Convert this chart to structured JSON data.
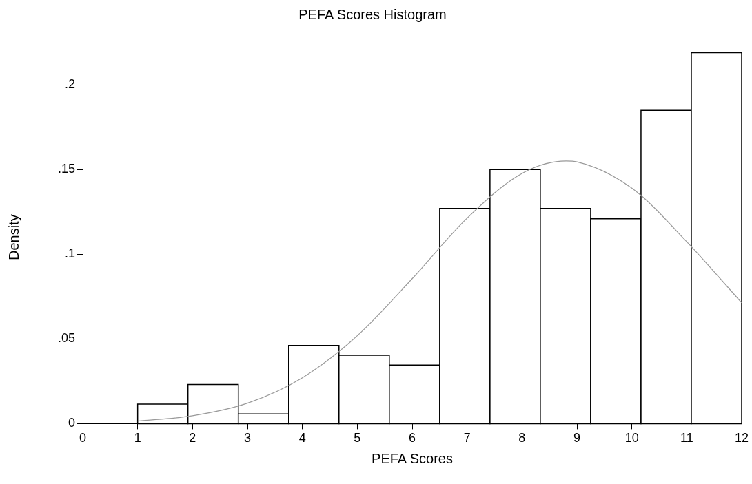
{
  "chart_data": {
    "type": "histogram",
    "title": "PEFA Scores Histogram",
    "xlabel": "PEFA Scores",
    "ylabel": "Density",
    "bins": [
      1,
      1.9167,
      2.8333,
      3.75,
      4.6667,
      5.5833,
      6.5,
      7.4167,
      8.3333,
      9.25,
      10.1667,
      11.0833,
      12
    ],
    "values": [
      0.0115,
      0.0231,
      0.0058,
      0.0462,
      0.0404,
      0.0346,
      0.127,
      0.15,
      0.127,
      0.121,
      0.185,
      0.219
    ],
    "color": "#ffffff",
    "series": [
      {
        "type": "line",
        "color": "#999999",
        "x": [
          1,
          2,
          3,
          4,
          5,
          6,
          7,
          8,
          8.8,
          9,
          10,
          11,
          12
        ],
        "values": [
          0.0015,
          0.0047,
          0.0121,
          0.0271,
          0.0519,
          0.0856,
          0.1213,
          0.1477,
          0.155,
          0.1545,
          0.139,
          0.1074,
          0.0714
        ]
      }
    ],
    "xlim": [
      0,
      12
    ],
    "xticks": [
      0,
      1,
      2,
      3,
      4,
      5,
      6,
      7,
      8,
      9,
      10,
      11,
      12
    ],
    "ylim": [
      0,
      0.22
    ],
    "yticks": [
      0,
      {
        "value": 0.05,
        "label": ".05"
      },
      {
        "value": 0.1,
        "label": ".1"
      },
      {
        "value": 0.15,
        "label": ".15"
      },
      {
        "value": 0.2,
        "label": ".2"
      }
    ],
    "grid": false,
    "legend": false
  }
}
